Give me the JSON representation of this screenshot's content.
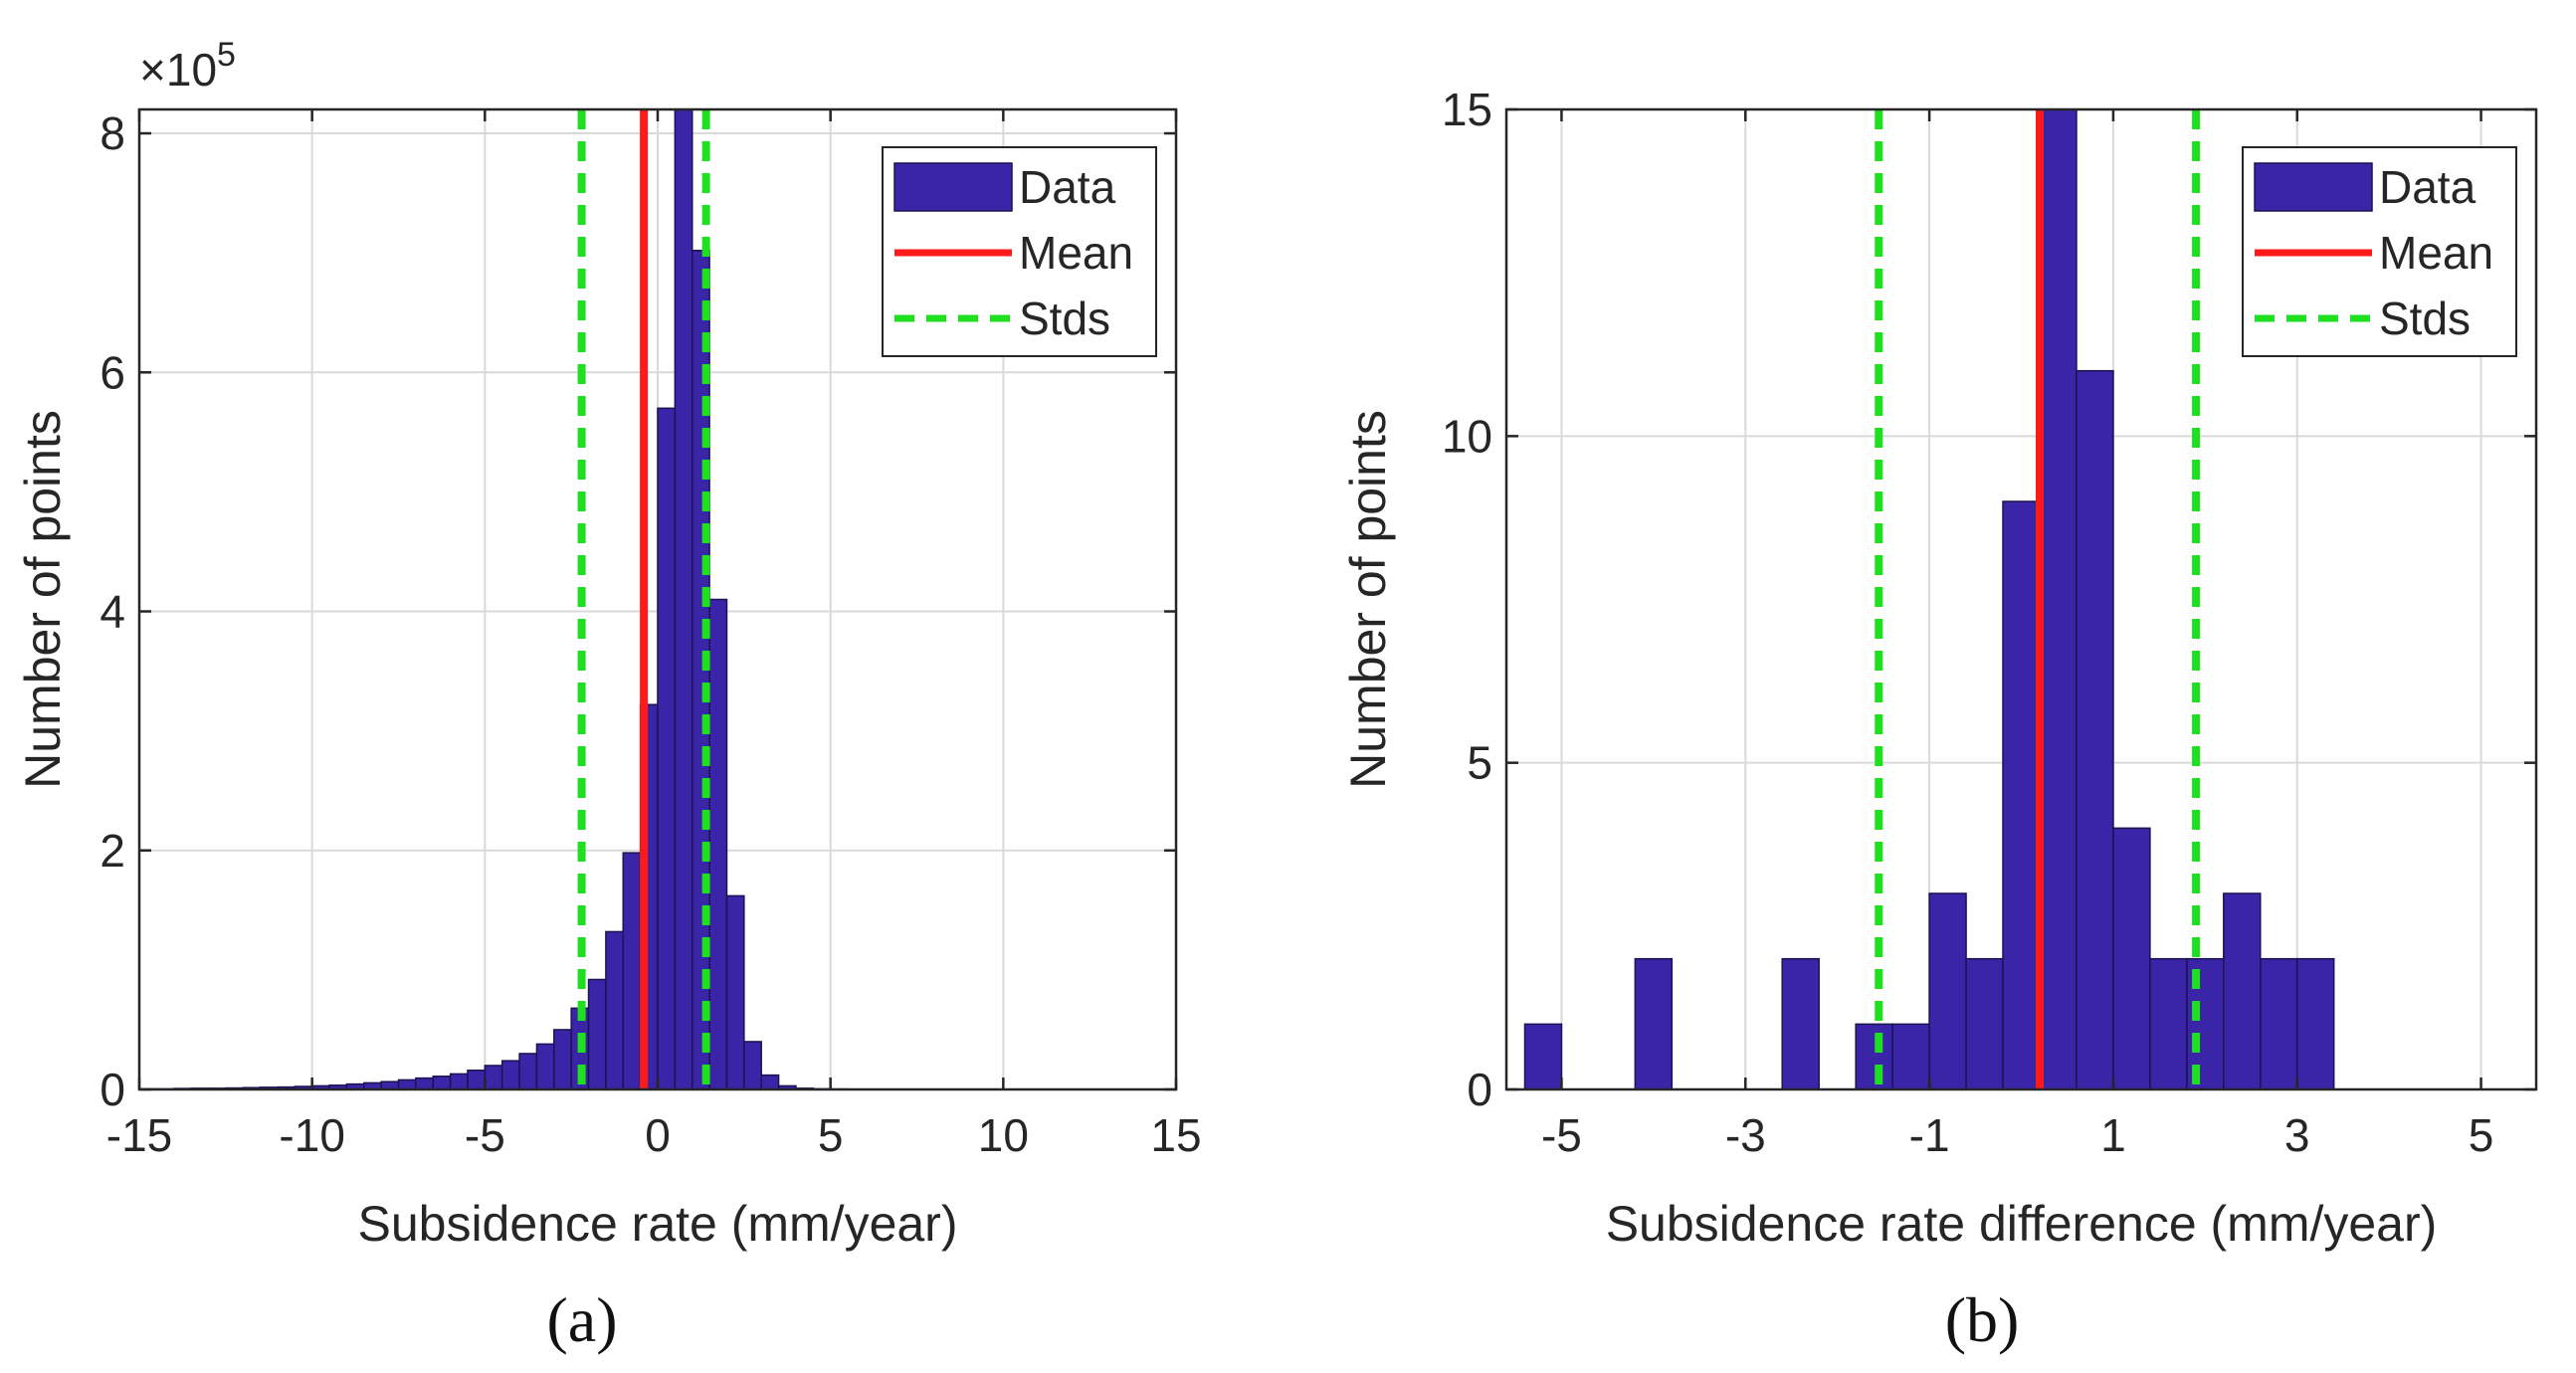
{
  "chart_data": [
    {
      "type": "bar",
      "panel_label": "(a)",
      "xlabel": "Subsidence rate (mm/year)",
      "ylabel": "Number of points",
      "y_exponent_label": "×10",
      "y_exponent_power": "5",
      "y_multiplier": 100000,
      "xlim": [
        -15,
        15
      ],
      "ylim": [
        0,
        8.2
      ],
      "xticks": [
        -15,
        -10,
        -5,
        0,
        5,
        10,
        15
      ],
      "xtick_labels": [
        "-15",
        "-10",
        "-5",
        "0",
        "5",
        "10",
        "15"
      ],
      "yticks": [
        0,
        2,
        4,
        6,
        8
      ],
      "ytick_labels": [
        "0",
        "2",
        "4",
        "6",
        "8"
      ],
      "grid": true,
      "bin_width": 0.5,
      "bin_left_edges": [
        -15.0,
        -14.5,
        -14.0,
        -13.5,
        -13.0,
        -12.5,
        -12.0,
        -11.5,
        -11.0,
        -10.5,
        -10.0,
        -9.5,
        -9.0,
        -8.5,
        -8.0,
        -7.5,
        -7.0,
        -6.5,
        -6.0,
        -5.5,
        -5.0,
        -4.5,
        -4.0,
        -3.5,
        -3.0,
        -2.5,
        -2.0,
        -1.5,
        -1.0,
        -0.5,
        0.0,
        0.5,
        1.0,
        1.5,
        2.0,
        2.5,
        3.0,
        3.5,
        4.0,
        4.5,
        5.0,
        5.5,
        6.0,
        6.5,
        7.0,
        7.5,
        8.0,
        8.5,
        9.0,
        9.5,
        10.0,
        10.5,
        11.0,
        11.5,
        12.0,
        12.5,
        13.0,
        13.5,
        14.0,
        14.5
      ],
      "values": [
        0.005,
        0.005,
        0.008,
        0.01,
        0.01,
        0.012,
        0.015,
        0.018,
        0.02,
        0.025,
        0.03,
        0.035,
        0.045,
        0.055,
        0.065,
        0.08,
        0.095,
        0.11,
        0.13,
        0.16,
        0.2,
        0.24,
        0.3,
        0.38,
        0.5,
        0.68,
        0.92,
        1.32,
        1.98,
        3.22,
        5.7,
        8.2,
        7.02,
        4.1,
        1.62,
        0.4,
        0.12,
        0.03,
        0.01,
        0.005,
        0.003,
        0.002,
        0.002,
        0.001,
        0.001,
        0.001,
        0.001,
        0.001,
        0.001,
        0.001,
        0.001,
        0.001,
        0.001,
        0.001,
        0.001,
        0.001,
        0.001,
        0.001,
        0.001,
        0.001
      ],
      "mean": -0.4,
      "std_lines": [
        -2.2,
        1.4
      ],
      "legend": [
        "Data",
        "Mean",
        "Stds"
      ],
      "legend_position": "top-right",
      "colors": {
        "bar": "#3a24a8",
        "bar_edge": "#1a1450",
        "mean": "#ff1a1a",
        "std": "#1ee01e"
      }
    },
    {
      "type": "bar",
      "panel_label": "(b)",
      "xlabel": "Subsidence rate difference (mm/year)",
      "ylabel": "Number of points",
      "xlim": [
        -5.6,
        5.6
      ],
      "ylim": [
        0,
        15
      ],
      "xticks": [
        -5,
        -3,
        -1,
        1,
        3,
        5
      ],
      "xtick_labels": [
        "-5",
        "-3",
        "-1",
        "1",
        "3",
        "5"
      ],
      "yticks": [
        0,
        5,
        10,
        15
      ],
      "ytick_labels": [
        "0",
        "5",
        "10",
        "15"
      ],
      "grid": true,
      "bin_width": 0.4,
      "bin_left_edges": [
        -5.4,
        -5.0,
        -4.6,
        -4.2,
        -3.8,
        -3.4,
        -3.0,
        -2.6,
        -2.2,
        -1.8,
        -1.4,
        -1.0,
        -0.6,
        -0.2,
        0.2,
        0.6,
        1.0,
        1.4,
        1.8,
        2.2,
        2.6,
        3.0,
        3.4,
        3.8,
        4.2,
        4.6,
        5.0
      ],
      "values": [
        1,
        0,
        0,
        2,
        0,
        0,
        0,
        2,
        0,
        1,
        1,
        3,
        2,
        9,
        15,
        11,
        4,
        2,
        2,
        3,
        2,
        2,
        0,
        0,
        0,
        0,
        0
      ],
      "mean": 0.2,
      "std_lines": [
        -1.55,
        1.9
      ],
      "legend": [
        "Data",
        "Mean",
        "Stds"
      ],
      "legend_position": "top-right",
      "colors": {
        "bar": "#3a24a8",
        "bar_edge": "#1a1450",
        "mean": "#ff1a1a",
        "std": "#1ee01e"
      }
    }
  ]
}
